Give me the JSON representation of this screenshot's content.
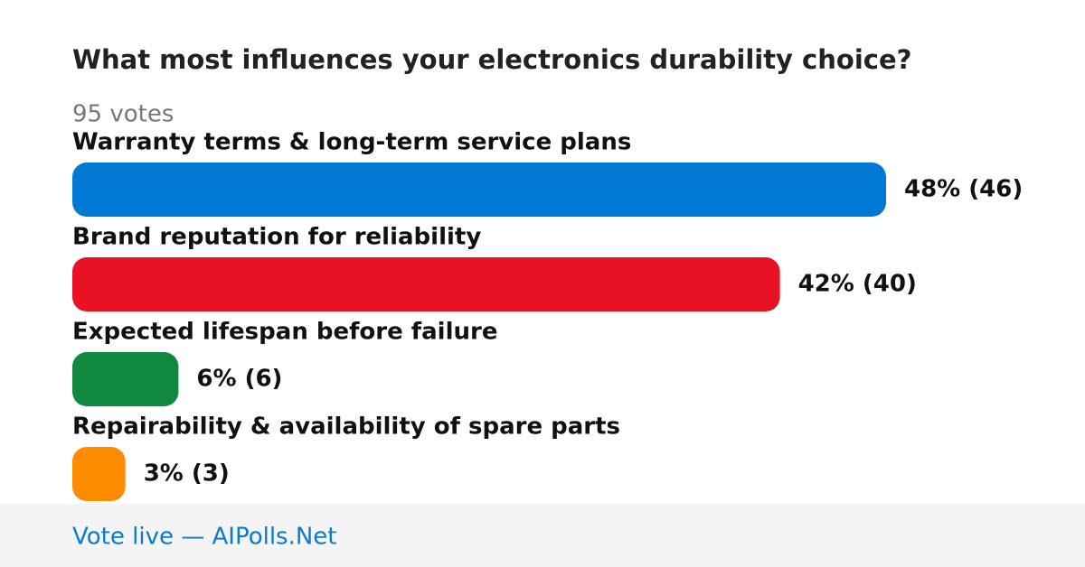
{
  "chart_data": {
    "type": "bar",
    "orientation": "horizontal",
    "title": "What most influences your electronics durability choice?",
    "subtitle": "95 votes",
    "categories": [
      "Warranty terms & long-term service plans",
      "Brand reputation for reliability",
      "Expected lifespan before failure",
      "Repairability & availability of spare parts"
    ],
    "values": [
      46,
      40,
      6,
      3
    ],
    "value_labels": [
      "48% (46)",
      "42% (40)",
      "6% (6)",
      "3% (3)"
    ],
    "colors": [
      "#0078d4",
      "#e81224",
      "#10893e",
      "#ff8c00"
    ]
  },
  "footer": "Vote live — AIPolls.Net"
}
